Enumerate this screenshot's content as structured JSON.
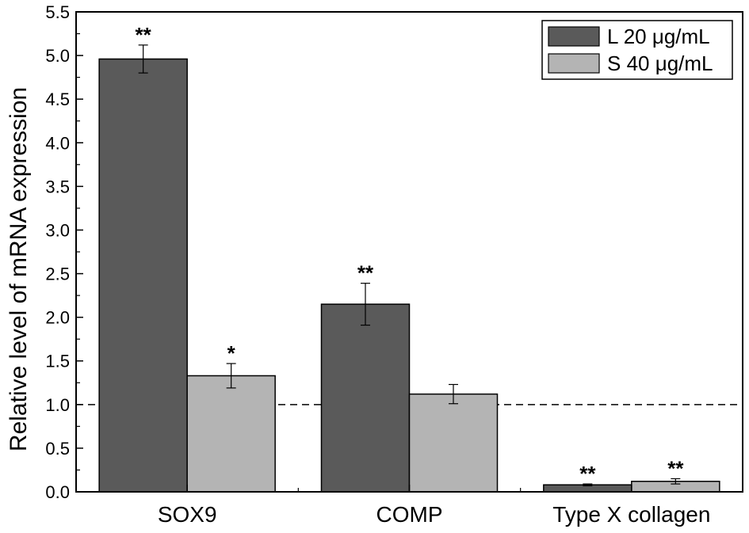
{
  "chart_data": {
    "type": "bar",
    "categories": [
      "SOX9",
      "COMP",
      "Type X collagen"
    ],
    "series": [
      {
        "name": "L 20 μg/mL",
        "color": "#5a5a5a",
        "values": [
          4.96,
          2.15,
          0.08
        ],
        "errors": [
          0.16,
          0.24,
          0.01
        ],
        "significance": [
          "**",
          "**",
          "**"
        ]
      },
      {
        "name": "S 40 μg/mL",
        "color": "#b4b4b4",
        "values": [
          1.33,
          1.12,
          0.12
        ],
        "errors": [
          0.14,
          0.11,
          0.03
        ],
        "significance": [
          "*",
          "",
          "**"
        ]
      }
    ],
    "title": "",
    "xlabel": "",
    "ylabel": "Relative level of mRNA expression",
    "ylim": [
      0,
      5.5
    ],
    "yticks": [
      "0.0",
      "0.5",
      "1.0",
      "1.5",
      "2.0",
      "2.5",
      "3.0",
      "3.5",
      "4.0",
      "4.5",
      "5.0",
      "5.5"
    ],
    "reference_line": {
      "y": 1.0,
      "style": "dashed"
    },
    "legend_position": "top-right",
    "grid": false
  }
}
